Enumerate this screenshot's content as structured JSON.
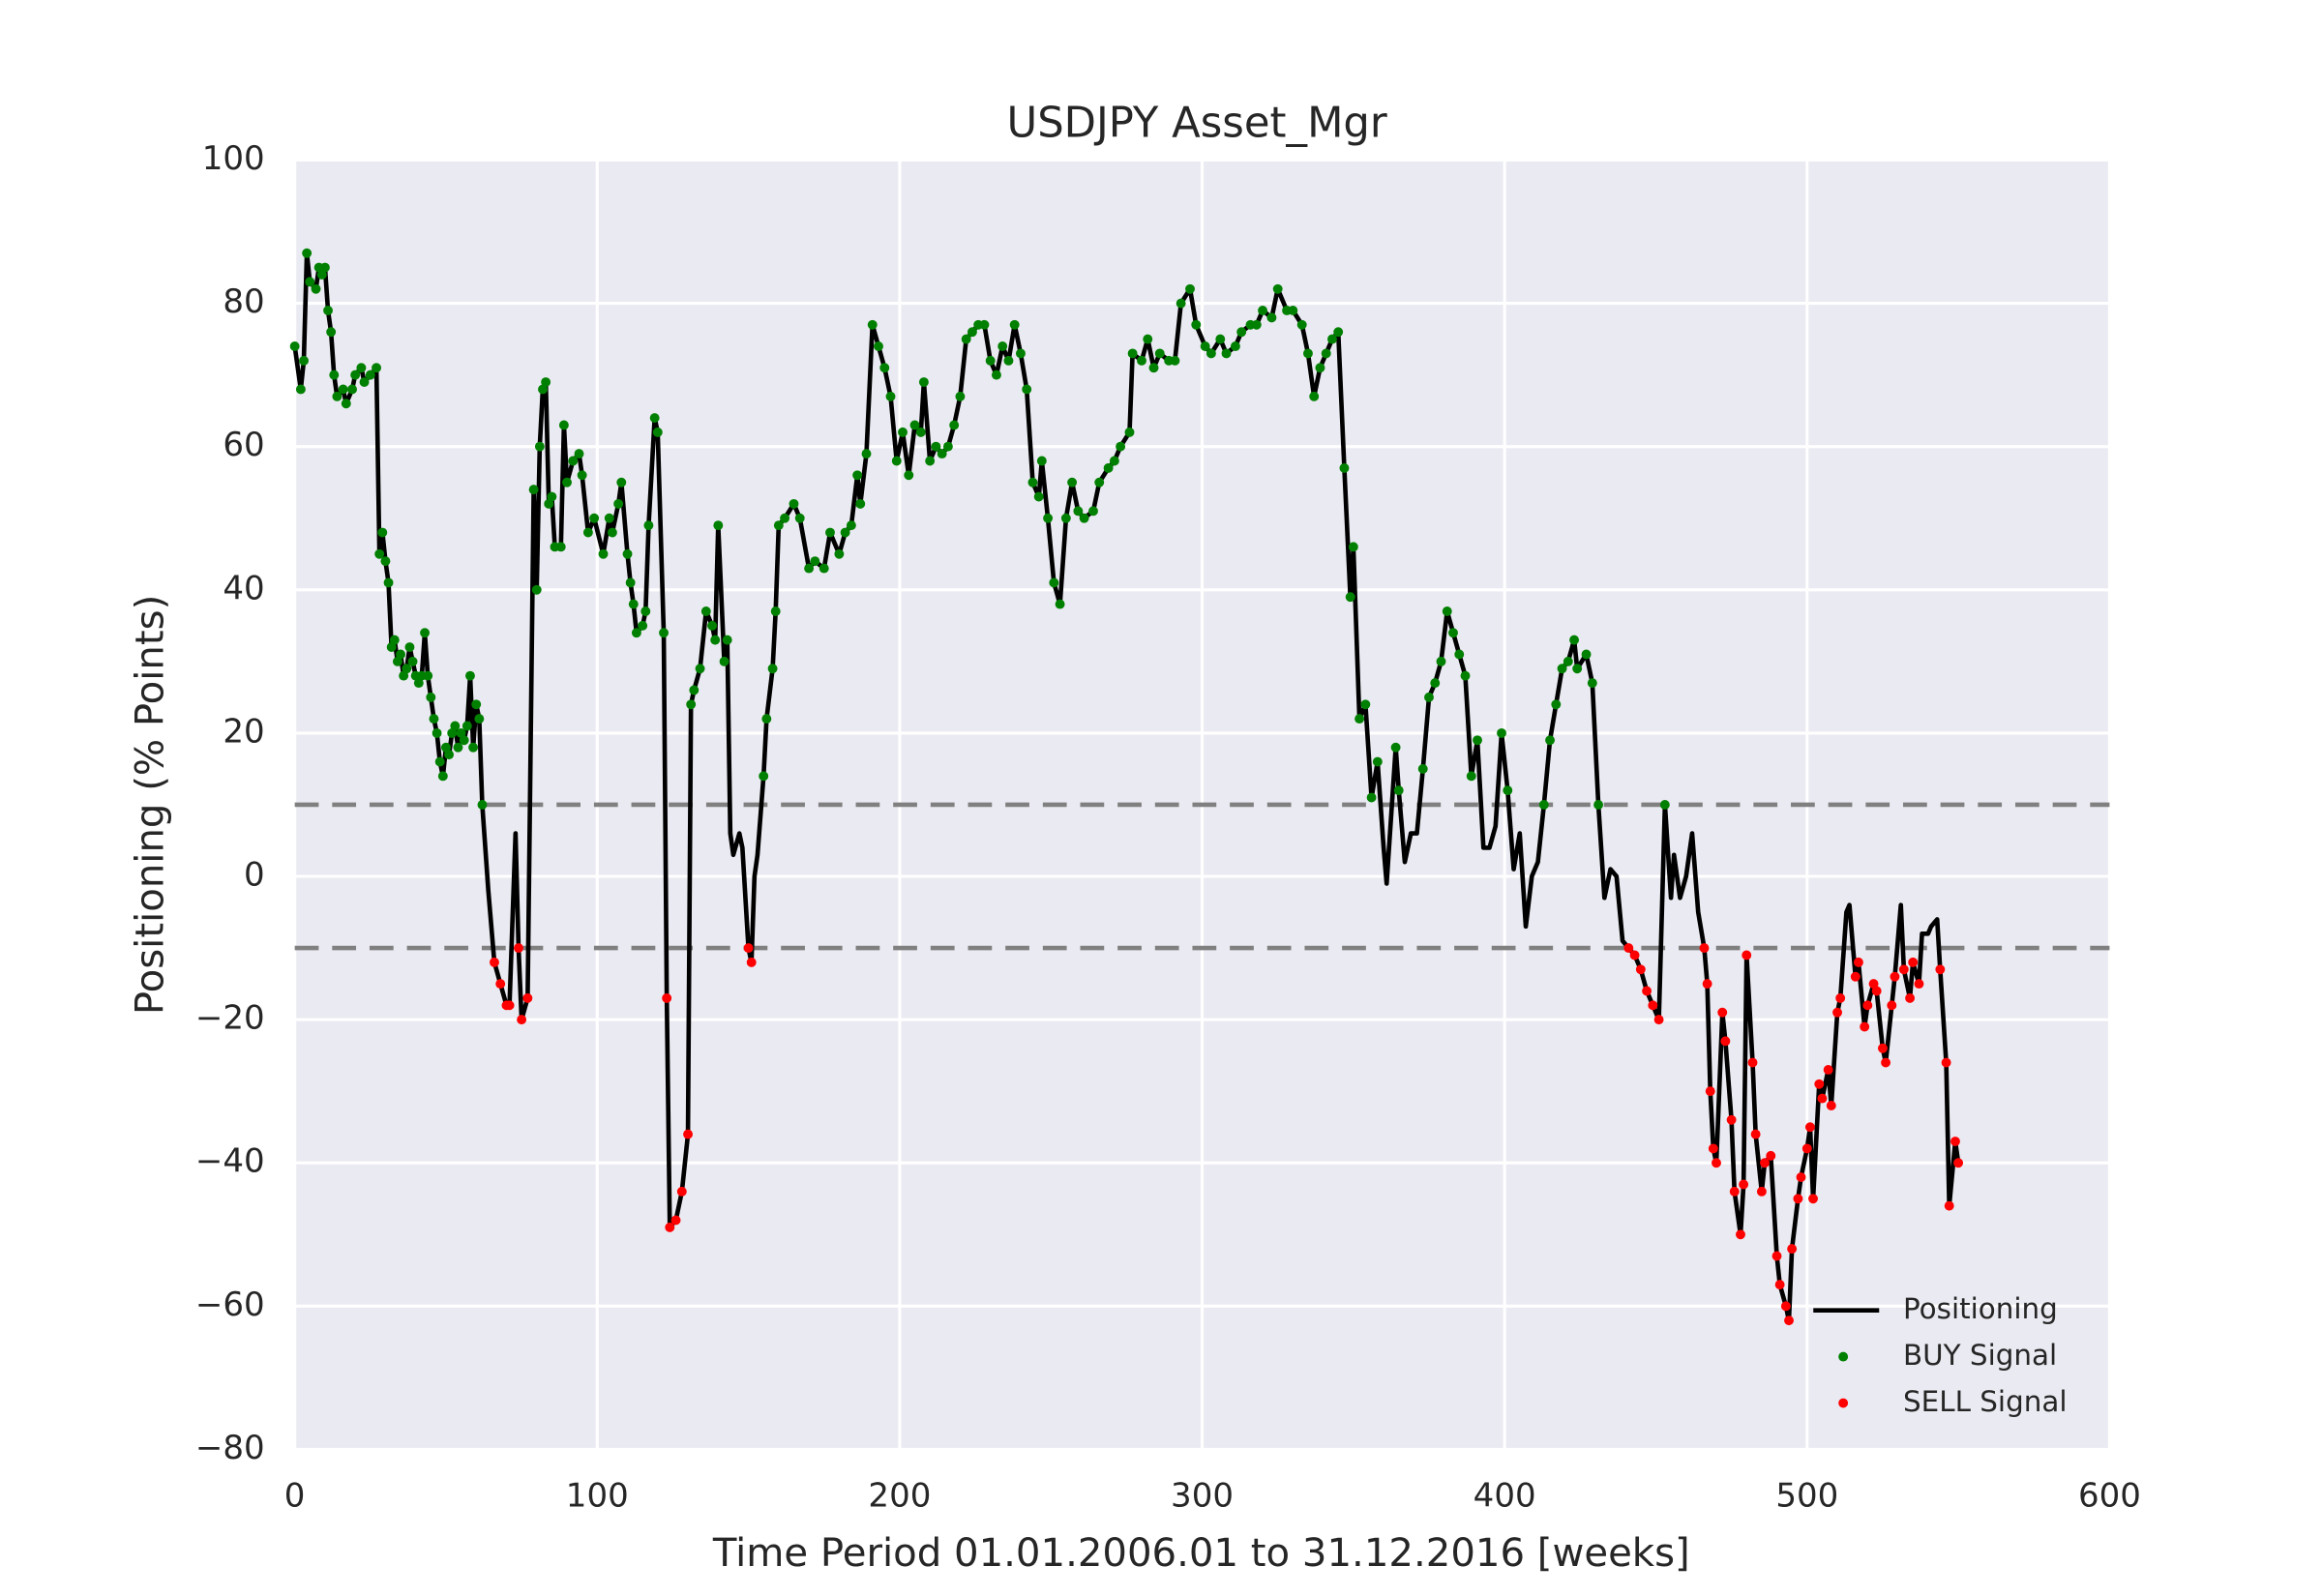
{
  "chart_data": {
    "type": "line",
    "title": "USDJPY Asset_Mgr",
    "x_label": "Time Period 01.01.2006.01 to 31.12.2016 [weeks]",
    "y_label": "Positioning (% Points)",
    "xlim": [
      0,
      600
    ],
    "xticks": [
      0,
      100,
      200,
      300,
      400,
      500,
      600
    ],
    "ylim": [
      -80,
      100
    ],
    "yticks": [
      {
        "value": -80,
        "label": "−80"
      },
      {
        "value": -60,
        "label": "−60"
      },
      {
        "value": -40,
        "label": "−40"
      },
      {
        "value": -20,
        "label": "−20"
      },
      0,
      20,
      40,
      60,
      80,
      100
    ],
    "grid": true,
    "legend": "lower right",
    "hlines": [
      10,
      -10
    ],
    "hline_color": "#808080",
    "x": [
      0,
      2,
      3,
      4,
      5,
      7,
      8,
      9,
      10,
      11,
      12,
      13,
      14,
      16,
      17,
      19,
      20,
      22,
      23,
      25,
      27,
      28,
      29,
      30,
      31,
      32,
      33,
      34,
      35,
      36,
      37,
      38,
      39,
      40,
      41,
      42,
      43,
      44,
      45,
      46,
      47,
      48,
      49,
      50,
      51,
      52,
      53,
      54,
      55,
      56,
      57,
      58,
      59,
      60,
      61,
      62,
      64,
      66,
      68,
      70,
      71,
      73,
      74,
      75,
      77,
      79,
      80,
      81,
      82,
      83,
      84,
      85,
      86,
      88,
      89,
      90,
      92,
      94,
      95,
      97,
      99,
      102,
      104,
      105,
      107,
      108,
      110,
      111,
      112,
      113,
      115,
      116,
      117,
      119,
      120,
      122,
      123,
      124,
      126,
      128,
      130,
      131,
      132,
      134,
      136,
      138,
      139,
      140,
      142,
      143,
      144,
      145,
      147,
      148,
      150,
      151,
      152,
      153,
      155,
      156,
      158,
      159,
      160,
      162,
      165,
      167,
      170,
      172,
      175,
      177,
      180,
      182,
      184,
      186,
      187,
      189,
      191,
      193,
      195,
      197,
      199,
      201,
      203,
      205,
      207,
      208,
      210,
      212,
      214,
      216,
      218,
      220,
      222,
      224,
      226,
      228,
      230,
      232,
      234,
      236,
      238,
      240,
      242,
      244,
      246,
      247,
      249,
      251,
      253,
      255,
      257,
      259,
      261,
      264,
      266,
      269,
      271,
      273,
      276,
      277,
      280,
      282,
      284,
      286,
      289,
      291,
      293,
      296,
      298,
      301,
      303,
      306,
      308,
      311,
      313,
      316,
      318,
      320,
      323,
      325,
      328,
      330,
      333,
      335,
      337,
      339,
      341,
      343,
      345,
      347,
      349,
      350,
      352,
      354,
      356,
      358,
      360,
      361,
      364,
      365,
      367,
      369,
      371,
      373,
      375,
      377,
      379,
      381,
      383,
      385,
      387,
      389,
      391,
      393,
      395,
      397,
      399,
      401,
      403,
      405,
      407,
      409,
      411,
      413,
      415,
      417,
      419,
      421,
      423,
      424,
      427,
      429,
      431,
      433,
      435,
      437,
      439,
      441,
      443,
      445,
      447,
      449,
      451,
      453,
      455,
      456,
      458,
      460,
      462,
      464,
      466,
      467,
      468,
      469,
      470,
      472,
      473,
      475,
      476,
      478,
      479,
      480,
      482,
      483,
      485,
      486,
      488,
      490,
      491,
      493,
      494,
      495,
      497,
      498,
      500,
      501,
      502,
      504,
      505,
      507,
      508,
      510,
      511,
      513,
      514,
      516,
      517,
      519,
      520,
      522,
      523,
      525,
      526,
      528,
      529,
      531,
      532,
      534,
      535,
      537,
      538,
      540,
      541,
      543,
      544,
      546,
      547,
      549,
      550
    ],
    "series": [
      {
        "name": "Positioning",
        "color": "#000000",
        "values": [
          74,
          68,
          72,
          87,
          83,
          82,
          85,
          84,
          85,
          79,
          76,
          70,
          67,
          68,
          66,
          68,
          70,
          71,
          69,
          70,
          71,
          45,
          48,
          44,
          41,
          32,
          33,
          30,
          31,
          28,
          29,
          32,
          30,
          28,
          27,
          28,
          34,
          28,
          25,
          22,
          20,
          16,
          14,
          18,
          17,
          20,
          21,
          18,
          20,
          19,
          21,
          28,
          18,
          24,
          22,
          10,
          -2,
          -12,
          -15,
          -18,
          -18,
          6,
          -10,
          -20,
          -17,
          54,
          40,
          60,
          68,
          69,
          52,
          53,
          46,
          46,
          63,
          55,
          58,
          59,
          56,
          48,
          50,
          45,
          50,
          48,
          52,
          55,
          45,
          41,
          38,
          34,
          35,
          37,
          49,
          64,
          62,
          34,
          -17,
          -49,
          -48,
          -44,
          -36,
          24,
          26,
          29,
          37,
          35,
          33,
          49,
          30,
          33,
          6,
          3,
          6,
          4,
          -10,
          -12,
          0,
          3,
          14,
          22,
          29,
          37,
          49,
          50,
          52,
          50,
          43,
          44,
          43,
          48,
          45,
          48,
          49,
          56,
          52,
          59,
          77,
          74,
          71,
          67,
          58,
          62,
          56,
          63,
          62,
          69,
          58,
          60,
          59,
          60,
          63,
          67,
          75,
          76,
          77,
          77,
          72,
          70,
          74,
          72,
          77,
          73,
          68,
          55,
          53,
          58,
          50,
          41,
          38,
          50,
          55,
          51,
          50,
          51,
          55,
          57,
          58,
          60,
          62,
          73,
          72,
          75,
          71,
          73,
          72,
          72,
          80,
          82,
          77,
          74,
          73,
          75,
          73,
          74,
          76,
          77,
          77,
          79,
          78,
          82,
          79,
          79,
          77,
          73,
          67,
          71,
          73,
          75,
          76,
          57,
          39,
          46,
          22,
          24,
          11,
          16,
          4,
          -1,
          18,
          12,
          2,
          6,
          6,
          15,
          25,
          27,
          30,
          37,
          34,
          31,
          28,
          14,
          19,
          4,
          4,
          7,
          20,
          12,
          1,
          6,
          -7,
          0,
          2,
          10,
          19,
          24,
          29,
          30,
          33,
          29,
          31,
          27,
          10,
          -3,
          1,
          0,
          -9,
          -10,
          -11,
          -13,
          -16,
          -18,
          -20,
          10,
          -3,
          3,
          -3,
          0,
          6,
          -5,
          -10,
          -15,
          -30,
          -38,
          -40,
          -19,
          -23,
          -34,
          -44,
          -50,
          -43,
          -11,
          -26,
          -36,
          -44,
          -40,
          -39,
          -53,
          -57,
          -60,
          -62,
          -52,
          -45,
          -42,
          -38,
          -35,
          -45,
          -29,
          -31,
          -27,
          -32,
          -19,
          -17,
          -5,
          -4,
          -14,
          -12,
          -21,
          -18,
          -15,
          -16,
          -24,
          -26,
          -18,
          -14,
          -4,
          -13,
          -17,
          -12,
          -15,
          -8,
          -8,
          -7,
          -6,
          -13,
          -26,
          -46,
          -37,
          -40
        ]
      },
      {
        "name": "BUY Signal",
        "color": "#008000"
      },
      {
        "name": "SELL Signal",
        "color": "#ff0000"
      }
    ]
  }
}
